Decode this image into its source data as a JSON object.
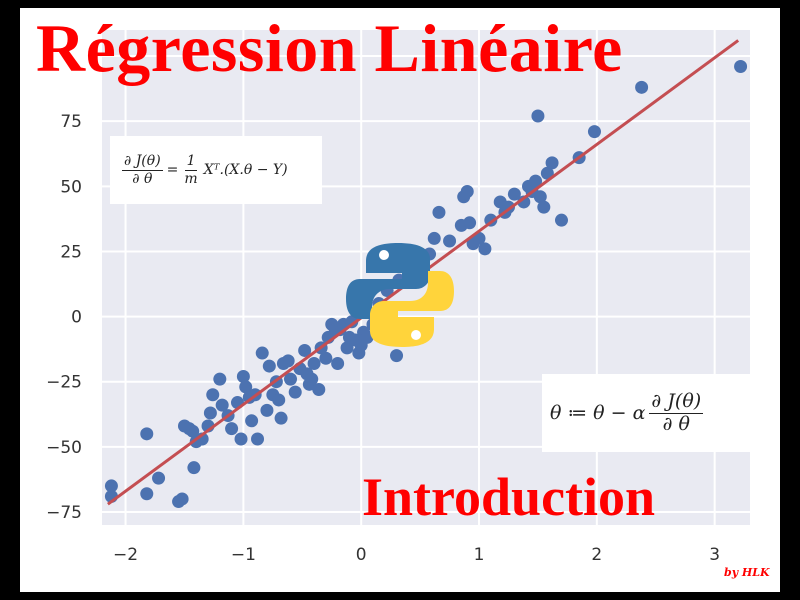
{
  "title": "Régression Linéaire",
  "subtitle": "Introduction",
  "author_mark": "by HLK",
  "formulas": {
    "gradient": {
      "lhs_num": "∂ J(θ)",
      "lhs_den": "∂ θ",
      "eq": "=",
      "coef_num": "1",
      "coef_den": "m",
      "rhs": "Xᵀ.(X.θ  − Y)"
    },
    "update": {
      "lhs": "θ ≔ θ  −  α",
      "num": "∂ J(θ)",
      "den": "∂ θ"
    }
  },
  "icons": {
    "python_logo": "python-logo-icon"
  },
  "colors": {
    "title": "#ff0000",
    "plot_bg": "#e9eaf2",
    "points": "#4c72b0",
    "fit_line": "#c44e52",
    "python_blue": "#3776ab",
    "python_yellow": "#ffd43b"
  },
  "chart_data": {
    "type": "scatter",
    "xlim": [
      -2.2,
      3.3
    ],
    "ylim": [
      -80,
      110
    ],
    "x_ticks": [
      -2,
      -1,
      0,
      1,
      2,
      3
    ],
    "x_tick_labels": [
      "−2",
      "−1",
      "0",
      "1",
      "2",
      "3"
    ],
    "y_ticks": [
      -75,
      -50,
      -25,
      0,
      25,
      50,
      75,
      100
    ],
    "y_tick_labels": [
      "−75",
      "−50",
      "−25",
      "0",
      "25",
      "50",
      "75",
      ""
    ],
    "grid": true,
    "points": [
      [
        -2.12,
        -65
      ],
      [
        -2.12,
        -69
      ],
      [
        -1.82,
        -45
      ],
      [
        -1.82,
        -68
      ],
      [
        -1.72,
        -62
      ],
      [
        -1.55,
        -71
      ],
      [
        -1.52,
        -70
      ],
      [
        -1.5,
        -42
      ],
      [
        -1.46,
        -43
      ],
      [
        -1.43,
        -44
      ],
      [
        -1.42,
        -58
      ],
      [
        -1.4,
        -48
      ],
      [
        -1.35,
        -47
      ],
      [
        -1.3,
        -42
      ],
      [
        -1.28,
        -37
      ],
      [
        -1.26,
        -30
      ],
      [
        -1.2,
        -24
      ],
      [
        -1.18,
        -34
      ],
      [
        -1.13,
        -38
      ],
      [
        -1.1,
        -43
      ],
      [
        -1.05,
        -33
      ],
      [
        -1.02,
        -47
      ],
      [
        -1.0,
        -23
      ],
      [
        -0.98,
        -27
      ],
      [
        -0.95,
        -31
      ],
      [
        -0.93,
        -40
      ],
      [
        -0.9,
        -30
      ],
      [
        -0.88,
        -47
      ],
      [
        -0.84,
        -14
      ],
      [
        -0.8,
        -36
      ],
      [
        -0.78,
        -19
      ],
      [
        -0.75,
        -30
      ],
      [
        -0.72,
        -25
      ],
      [
        -0.7,
        -32
      ],
      [
        -0.68,
        -39
      ],
      [
        -0.66,
        -18
      ],
      [
        -0.62,
        -17
      ],
      [
        -0.6,
        -24
      ],
      [
        -0.56,
        -29
      ],
      [
        -0.52,
        -20
      ],
      [
        -0.48,
        -13
      ],
      [
        -0.46,
        -22
      ],
      [
        -0.44,
        -26
      ],
      [
        -0.42,
        -24
      ],
      [
        -0.4,
        -18
      ],
      [
        -0.36,
        -28
      ],
      [
        -0.34,
        -12
      ],
      [
        -0.3,
        -16
      ],
      [
        -0.28,
        -8
      ],
      [
        -0.25,
        -3
      ],
      [
        -0.22,
        -5
      ],
      [
        -0.2,
        -18
      ],
      [
        -0.18,
        -5
      ],
      [
        -0.15,
        -3
      ],
      [
        -0.12,
        -12
      ],
      [
        -0.1,
        -8
      ],
      [
        -0.08,
        -2
      ],
      [
        -0.05,
        -9
      ],
      [
        -0.02,
        -14
      ],
      [
        0.0,
        -11
      ],
      [
        0.02,
        -6
      ],
      [
        0.05,
        -8
      ],
      [
        0.1,
        -3
      ],
      [
        0.15,
        5
      ],
      [
        0.22,
        10
      ],
      [
        0.32,
        14
      ],
      [
        0.42,
        20
      ],
      [
        0.5,
        18
      ],
      [
        0.58,
        24
      ],
      [
        0.62,
        30
      ],
      [
        0.66,
        40
      ],
      [
        0.75,
        29
      ],
      [
        0.85,
        35
      ],
      [
        0.87,
        46
      ],
      [
        0.9,
        48
      ],
      [
        0.92,
        36
      ],
      [
        0.95,
        28
      ],
      [
        1.0,
        30
      ],
      [
        1.05,
        26
      ],
      [
        1.1,
        37
      ],
      [
        1.18,
        44
      ],
      [
        1.22,
        40
      ],
      [
        1.25,
        42
      ],
      [
        1.3,
        47
      ],
      [
        1.38,
        44
      ],
      [
        1.42,
        50
      ],
      [
        1.45,
        48
      ],
      [
        1.48,
        52
      ],
      [
        1.5,
        77
      ],
      [
        1.52,
        46
      ],
      [
        1.55,
        42
      ],
      [
        1.58,
        55
      ],
      [
        1.62,
        59
      ],
      [
        1.7,
        37
      ],
      [
        1.85,
        61
      ],
      [
        1.98,
        71
      ],
      [
        2.38,
        88
      ],
      [
        3.22,
        96
      ],
      [
        0.3,
        -15
      ]
    ],
    "fit_line": {
      "x": [
        -2.15,
        3.2
      ],
      "y": [
        -72,
        106
      ]
    }
  }
}
